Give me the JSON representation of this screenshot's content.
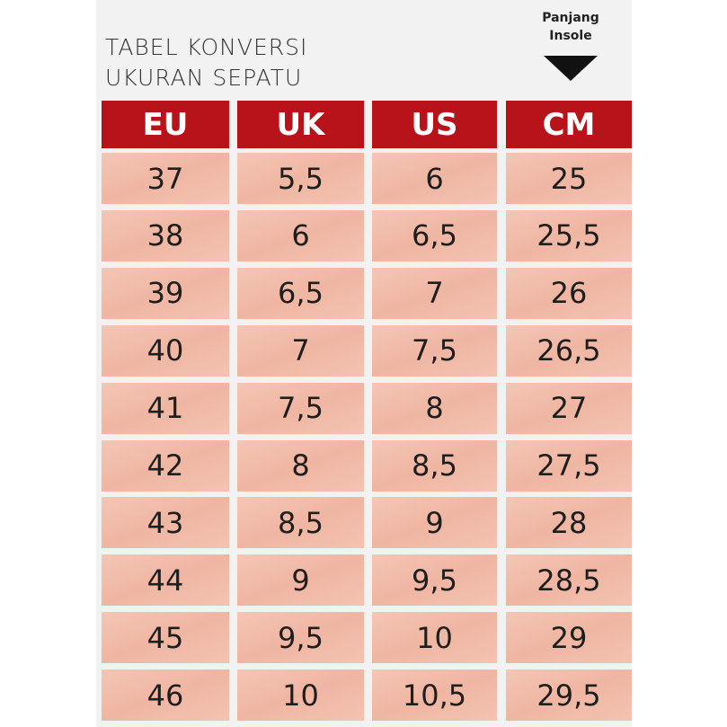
{
  "header": {
    "title_line1": "TABEL KONVERSI",
    "title_line2": "UKURAN SEPATU",
    "note_line1": "Panjang",
    "note_line2": "Insole"
  },
  "table": {
    "columns": [
      "EU",
      "UK",
      "US",
      "CM"
    ],
    "rows": [
      [
        "37",
        "5,5",
        "6",
        "25"
      ],
      [
        "38",
        "6",
        "6,5",
        "25,5"
      ],
      [
        "39",
        "6,5",
        "7",
        "26"
      ],
      [
        "40",
        "7",
        "7,5",
        "26,5"
      ],
      [
        "41",
        "7,5",
        "8",
        "27"
      ],
      [
        "42",
        "8",
        "8,5",
        "27,5"
      ],
      [
        "43",
        "8,5",
        "9",
        "28"
      ],
      [
        "44",
        "9",
        "9,5",
        "28,5"
      ],
      [
        "45",
        "9,5",
        "10",
        "29"
      ],
      [
        "46",
        "10",
        "10,5",
        "29,5"
      ]
    ]
  }
}
